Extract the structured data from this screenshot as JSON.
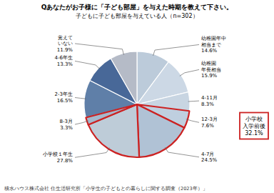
{
  "chart_data": {
    "type": "pie",
    "title": "Qあなたがお子様に「子ども部屋」を与えた時期を教えて下さい。",
    "subtitle": "子どもに子ども部屋を与えている人（n=302）",
    "categories": [
      "幼稚園年中\n相当まで",
      "幼稚園\n年長相当",
      "4-11月",
      "12-3月",
      "4-7月",
      "小学校１年生",
      "8-3月",
      "2-3年生",
      "4-6年生",
      "覚えて\nいない"
    ],
    "values": [
      14.6,
      15.9,
      8.3,
      7.6,
      24.5,
      27.8,
      3.3,
      16.5,
      13.3,
      11.9
    ],
    "value_labels": [
      "14.6%",
      "15.9%",
      "8.3%",
      "7.6%",
      "24.5%",
      "27.8%",
      "3.3%",
      "16.5%",
      "13.3%",
      "11.9%"
    ],
    "colors": [
      "#bccbda",
      "#ccd8e5",
      "#c8d5e2",
      "#bfcfdf",
      "#b0c2d5",
      "#beccd8",
      "#a5b8cc",
      "#5f7fa8",
      "#486898",
      "#b5bbc7"
    ],
    "data_labels": true,
    "annotations": [
      {
        "text": "積水ハウス株式会社 住生活研究所「小学生の子どもとの暮らしに関する調査（2023年）」"
      },
      {
        "text": "小学校\n入学前後\n32.1%",
        "color": "#cc2222",
        "indices": [
          3,
          4,
          5,
          6
        ]
      }
    ]
  }
}
